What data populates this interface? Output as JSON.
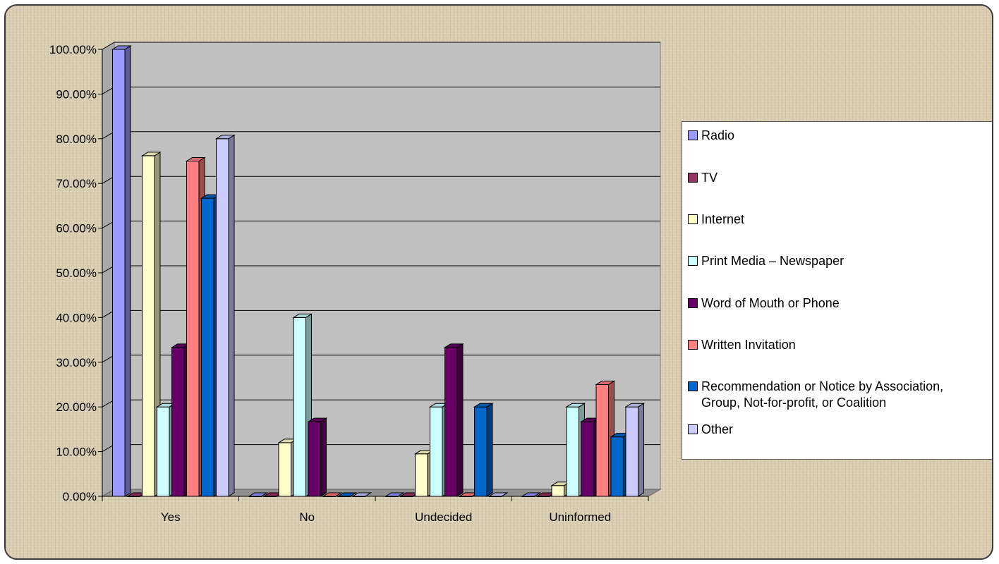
{
  "chart_data": {
    "type": "bar",
    "categories": [
      "Yes",
      "No",
      "Undecided",
      "Uninformed"
    ],
    "y_ticks": [
      "0.00%",
      "10.00%",
      "20.00%",
      "30.00%",
      "40.00%",
      "50.00%",
      "60.00%",
      "70.00%",
      "80.00%",
      "90.00%",
      "100.00%"
    ],
    "ylim": [
      0,
      100
    ],
    "grid": true,
    "legend_position": "right",
    "series": [
      {
        "name": "Radio",
        "color": "#9999ff",
        "values": [
          100,
          0,
          0,
          0
        ]
      },
      {
        "name": "TV",
        "color": "#993366",
        "values": [
          0,
          0,
          0,
          0
        ]
      },
      {
        "name": "Internet",
        "color": "#ffffcc",
        "values": [
          76.2,
          12,
          9.5,
          2.4
        ]
      },
      {
        "name": "Print Media – Newspaper",
        "color": "#ccffff",
        "values": [
          20,
          40,
          20,
          20
        ]
      },
      {
        "name": "Word of Mouth or Phone",
        "color": "#660066",
        "values": [
          33.3,
          16.7,
          33.3,
          16.7
        ]
      },
      {
        "name": "Written Invitation",
        "color": "#ff8080",
        "values": [
          75,
          0,
          0,
          25
        ]
      },
      {
        "name": "Recommendation or Notice by Association,\nGroup, Not-for-profit, or Coalition",
        "color": "#0066cc",
        "values": [
          66.7,
          0,
          20,
          13.3
        ]
      },
      {
        "name": "Other",
        "color": "#ccccff",
        "values": [
          80,
          0,
          0,
          20
        ]
      }
    ]
  }
}
